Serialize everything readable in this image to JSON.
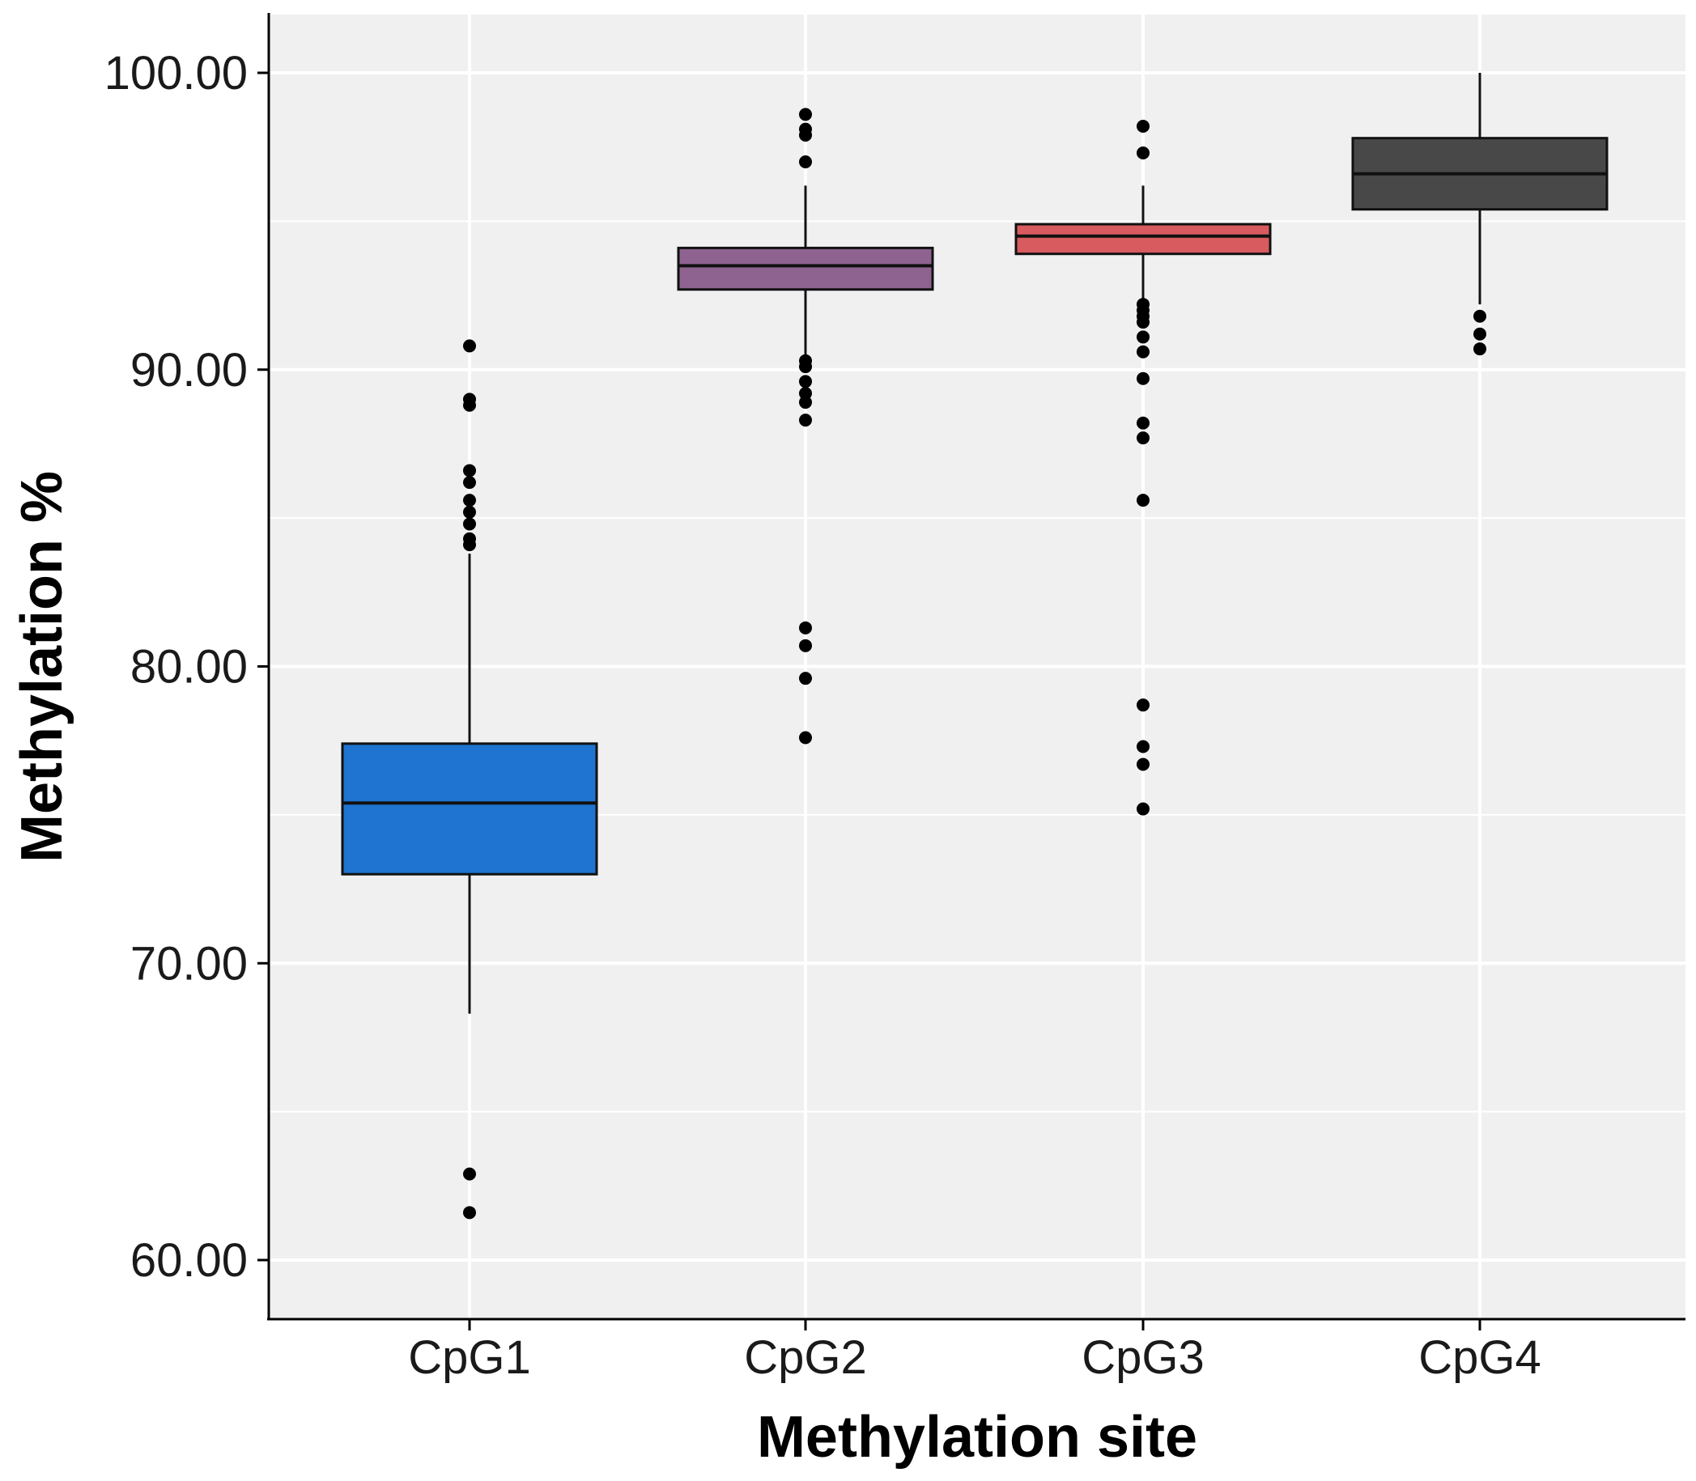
{
  "chart_data": {
    "type": "box",
    "title": "",
    "xlabel": "Methylation site",
    "ylabel": "Methylation %",
    "ylim": [
      58,
      102
    ],
    "yticks": [
      60,
      70,
      80,
      90,
      100
    ],
    "ytick_labels": [
      "60.00",
      "70.00",
      "80.00",
      "90.00",
      "100.00"
    ],
    "grid": true,
    "categories": [
      "CpG1",
      "CpG2",
      "CpG3",
      "CpG4"
    ],
    "boxes": [
      {
        "name": "CpG1",
        "color": "#1e74d0",
        "whisker_low": 68.3,
        "q1": 73.0,
        "median": 75.4,
        "q3": 77.4,
        "whisker_high": 83.8,
        "outliers": [
          90.8,
          89.0,
          88.8,
          86.6,
          86.2,
          85.6,
          85.2,
          84.8,
          84.3,
          84.1,
          62.9,
          61.6
        ]
      },
      {
        "name": "CpG2",
        "color": "#8e6390",
        "whisker_low": 90.5,
        "q1": 92.7,
        "median": 93.5,
        "q3": 94.1,
        "whisker_high": 96.2,
        "outliers": [
          98.6,
          98.1,
          97.9,
          97.0,
          90.3,
          90.1,
          89.6,
          89.2,
          88.9,
          88.3,
          81.3,
          80.7,
          79.6,
          77.6
        ]
      },
      {
        "name": "CpG3",
        "color": "#d75b5f",
        "whisker_low": 92.4,
        "q1": 93.9,
        "median": 94.5,
        "q3": 94.9,
        "whisker_high": 96.2,
        "outliers": [
          98.2,
          97.3,
          92.2,
          92.0,
          91.8,
          91.6,
          91.1,
          90.6,
          89.7,
          88.2,
          87.7,
          85.6,
          78.7,
          77.3,
          76.7,
          75.2
        ]
      },
      {
        "name": "CpG4",
        "color": "#484848",
        "whisker_low": 92.2,
        "q1": 95.4,
        "median": 96.6,
        "q3": 97.8,
        "whisker_high": 100.0,
        "outliers": [
          91.8,
          91.2,
          90.7
        ]
      }
    ]
  }
}
